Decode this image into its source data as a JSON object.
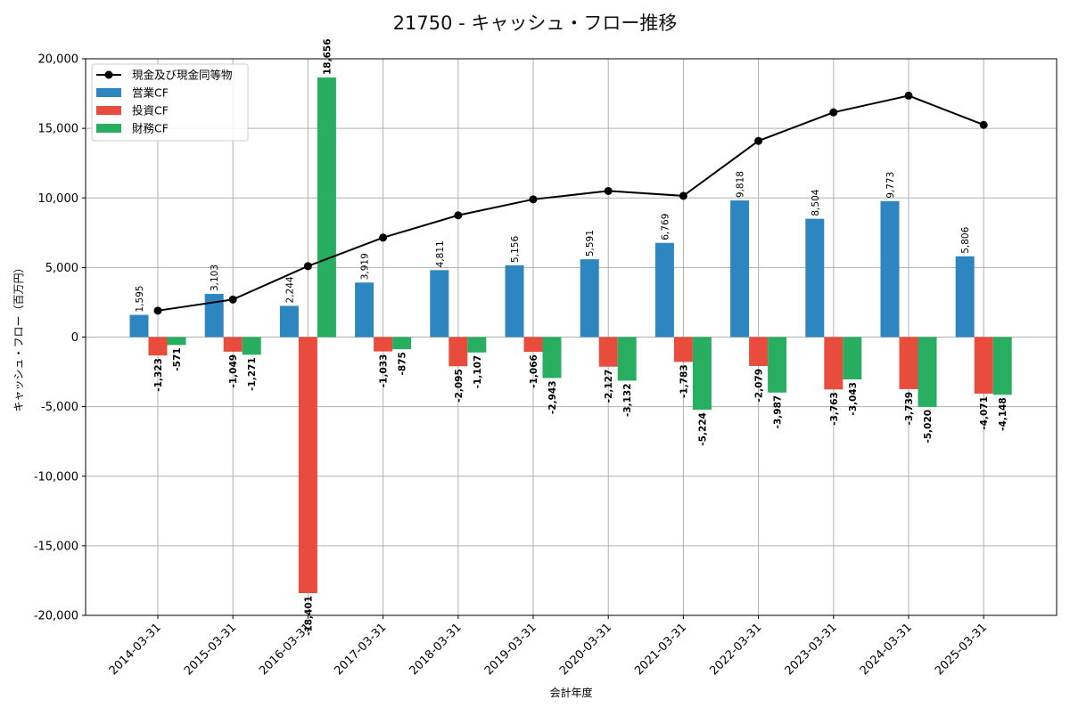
{
  "chart_data": {
    "type": "bar",
    "title": "21750 - キャッシュ・フロー推移",
    "xlabel": "会計年度",
    "ylabel": "キャッシュ・フロー（百万円）",
    "ylim": [
      -20000,
      20000
    ],
    "yticks": [
      -20000,
      -15000,
      -10000,
      -5000,
      0,
      5000,
      10000,
      15000,
      20000
    ],
    "ytick_labels": [
      "-20,000",
      "-15,000",
      "-10,000",
      "-5,000",
      "0",
      "5,000",
      "10,000",
      "15,000",
      "20,000"
    ],
    "grid": true,
    "legend_position": "top-left",
    "categories": [
      "2014-03-31",
      "2015-03-31",
      "2016-03-31",
      "2017-03-31",
      "2018-03-31",
      "2019-03-31",
      "2020-03-31",
      "2021-03-31",
      "2022-03-31",
      "2023-03-31",
      "2024-03-31",
      "2025-03-31"
    ],
    "series": [
      {
        "name": "営業CF",
        "kind": "bar",
        "color": "#2e86c1",
        "values": [
          1595,
          3103,
          2244,
          3919,
          4811,
          5156,
          5591,
          6769,
          9818,
          8504,
          9773,
          5806
        ],
        "labels": [
          "1,595",
          "3,103",
          "2,244",
          "3,919",
          "4,811",
          "5,156",
          "5,591",
          "6,769",
          "9,818",
          "8,504",
          "9,773",
          "5,806"
        ]
      },
      {
        "name": "投資CF",
        "kind": "bar",
        "color": "#e74c3c",
        "values": [
          -1323,
          -1049,
          -18401,
          -1033,
          -2095,
          -1066,
          -2127,
          -1783,
          -2079,
          -3763,
          -3739,
          -4071
        ],
        "labels": [
          "-1,323",
          "-1,049",
          "-18,401",
          "-1,033",
          "-2,095",
          "-1,066",
          "-2,127",
          "-1,783",
          "-2,079",
          "-3,763",
          "-3,739",
          "-4,071"
        ]
      },
      {
        "name": "財務CF",
        "kind": "bar",
        "color": "#27ae60",
        "values": [
          -571,
          -1271,
          18656,
          -875,
          -1107,
          -2943,
          -3132,
          -5224,
          -3987,
          -3043,
          -5020,
          -4148
        ],
        "labels": [
          "-571",
          "-1,271",
          "18,656",
          "-875",
          "-1,107",
          "-2,943",
          "-3,132",
          "-5,224",
          "-3,987",
          "-3,043",
          "-5,020",
          "-4,148"
        ]
      },
      {
        "name": "現金及び現金同等物",
        "kind": "line",
        "color": "#000000",
        "values": [
          1900,
          2700,
          5100,
          7150,
          8750,
          9900,
          10500,
          10150,
          14100,
          16150,
          17350,
          15250
        ]
      }
    ]
  }
}
